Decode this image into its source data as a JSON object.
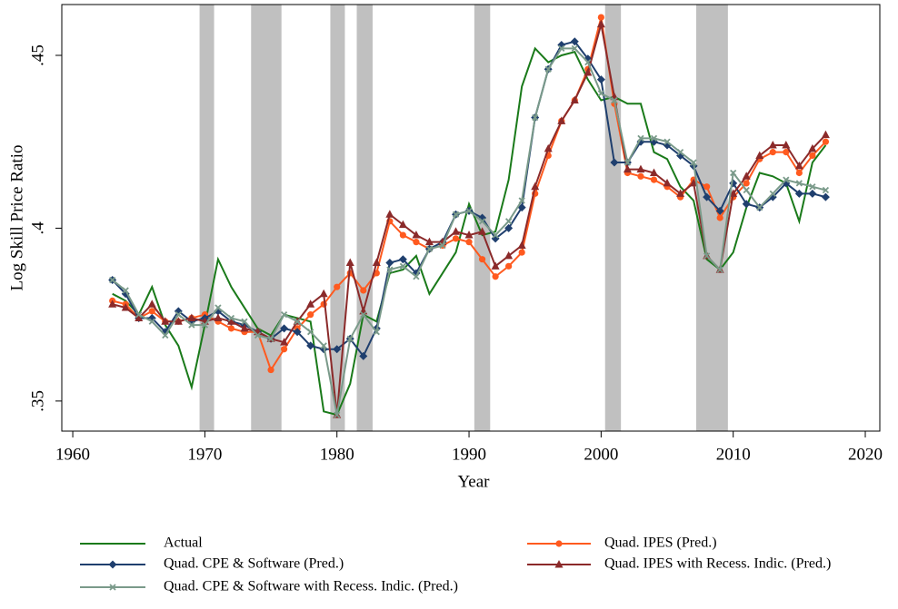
{
  "chart_data": {
    "type": "line",
    "x_label": "Year",
    "y_label": "Log Skill Price Ratio",
    "xlim": [
      1959.17,
      2021.1
    ],
    "ylim": [
      0.3413,
      0.4647
    ],
    "xticks": [
      1960,
      1970,
      1980,
      1990,
      2000,
      2010,
      2020
    ],
    "yticks": [
      {
        "value": 0.35,
        "label": ".35"
      },
      {
        "value": 0.4,
        "label": ".4"
      },
      {
        "value": 0.45,
        "label": ".45"
      }
    ],
    "grid": false,
    "legend": "bottom",
    "recessions": [
      [
        1969.6,
        1970.7
      ],
      [
        1973.5,
        1975.8
      ],
      [
        1979.5,
        1980.6
      ],
      [
        1981.5,
        1982.7
      ],
      [
        1990.4,
        1991.6
      ],
      [
        2000.3,
        2001.5
      ],
      [
        2007.2,
        2009.6
      ]
    ],
    "recession_color": "#c0c0c0",
    "x": [
      1963,
      1964,
      1965,
      1966,
      1967,
      1968,
      1969,
      1970,
      1971,
      1972,
      1973,
      1974,
      1975,
      1976,
      1977,
      1978,
      1979,
      1980,
      1981,
      1982,
      1983,
      1984,
      1985,
      1986,
      1987,
      1988,
      1989,
      1990,
      1991,
      1992,
      1993,
      1994,
      1995,
      1996,
      1997,
      1998,
      1999,
      2000,
      2001,
      2002,
      2003,
      2004,
      2005,
      2006,
      2007,
      2008,
      2009,
      2010,
      2011,
      2012,
      2013,
      2014,
      2015,
      2016,
      2017
    ],
    "series": [
      {
        "name": "Actual",
        "color": "#1a7a1a",
        "marker": "none",
        "values": [
          0.381,
          0.379,
          0.375,
          0.383,
          0.372,
          0.366,
          0.354,
          0.372,
          0.391,
          0.383,
          0.377,
          0.371,
          0.369,
          0.375,
          0.374,
          0.373,
          0.347,
          0.346,
          0.355,
          0.375,
          0.373,
          0.387,
          0.388,
          0.392,
          0.381,
          0.387,
          0.393,
          0.407,
          0.398,
          0.399,
          0.414,
          0.441,
          0.452,
          0.448,
          0.45,
          0.451,
          0.443,
          0.437,
          0.438,
          0.436,
          0.436,
          0.422,
          0.42,
          0.412,
          0.408,
          0.391,
          0.388,
          0.393,
          0.406,
          0.416,
          0.415,
          0.413,
          0.402,
          0.419,
          0.424
        ]
      },
      {
        "name": "Quad. IPES (Pred.)",
        "color": "#ff5a1f",
        "marker": "circle",
        "values": [
          0.379,
          0.378,
          0.374,
          0.376,
          0.373,
          0.373,
          0.374,
          0.375,
          0.373,
          0.371,
          0.37,
          0.37,
          0.359,
          0.365,
          0.371,
          0.375,
          0.378,
          0.383,
          0.387,
          0.382,
          0.387,
          0.402,
          0.398,
          0.396,
          0.394,
          0.395,
          0.397,
          0.396,
          0.391,
          0.386,
          0.389,
          0.393,
          0.41,
          0.421,
          0.431,
          0.437,
          0.446,
          0.461,
          0.436,
          0.416,
          0.415,
          0.414,
          0.412,
          0.409,
          0.414,
          0.412,
          0.403,
          0.409,
          0.413,
          0.42,
          0.422,
          0.422,
          0.416,
          0.421,
          0.425
        ]
      },
      {
        "name": "Quad. CPE & Software (Pred.)",
        "color": "#1f3f6e",
        "marker": "diamond",
        "values": [
          0.385,
          0.381,
          0.374,
          0.374,
          0.37,
          0.376,
          0.373,
          0.374,
          0.376,
          0.373,
          0.372,
          0.37,
          0.368,
          0.371,
          0.37,
          0.366,
          0.365,
          0.365,
          0.368,
          0.363,
          0.371,
          0.39,
          0.391,
          0.387,
          0.394,
          0.396,
          0.404,
          0.405,
          0.403,
          0.397,
          0.4,
          0.406,
          0.432,
          0.446,
          0.453,
          0.454,
          0.449,
          0.443,
          0.419,
          0.419,
          0.425,
          0.425,
          0.424,
          0.421,
          0.418,
          0.409,
          0.405,
          0.413,
          0.407,
          0.406,
          0.409,
          0.413,
          0.41,
          0.41,
          0.409
        ]
      },
      {
        "name": "Quad. IPES with Recess. Indic. (Pred.)",
        "color": "#8b2a2a",
        "marker": "triangle",
        "values": [
          0.378,
          0.377,
          0.374,
          0.378,
          0.373,
          0.373,
          0.374,
          0.373,
          0.374,
          0.373,
          0.371,
          0.37,
          0.368,
          0.367,
          0.373,
          0.378,
          0.381,
          0.346,
          0.39,
          0.376,
          0.39,
          0.404,
          0.401,
          0.398,
          0.396,
          0.396,
          0.399,
          0.398,
          0.399,
          0.389,
          0.392,
          0.395,
          0.412,
          0.423,
          0.431,
          0.437,
          0.445,
          0.459,
          0.438,
          0.417,
          0.417,
          0.416,
          0.413,
          0.41,
          0.413,
          0.392,
          0.388,
          0.41,
          0.415,
          0.421,
          0.424,
          0.424,
          0.418,
          0.423,
          0.427
        ]
      },
      {
        "name": "Quad. CPE & Software with Recess. Indic. (Pred.)",
        "color": "#7a9a8a",
        "marker": "x",
        "values": [
          0.385,
          0.382,
          0.375,
          0.373,
          0.369,
          0.375,
          0.372,
          0.372,
          0.377,
          0.374,
          0.373,
          0.369,
          0.368,
          0.375,
          0.373,
          0.37,
          0.366,
          0.346,
          0.368,
          0.375,
          0.37,
          0.388,
          0.389,
          0.386,
          0.394,
          0.395,
          0.404,
          0.405,
          0.402,
          0.398,
          0.402,
          0.408,
          0.432,
          0.446,
          0.452,
          0.452,
          0.448,
          0.439,
          0.437,
          0.419,
          0.426,
          0.426,
          0.425,
          0.422,
          0.419,
          0.392,
          0.388,
          0.416,
          0.411,
          0.406,
          0.41,
          0.414,
          0.413,
          0.412,
          0.411
        ]
      }
    ]
  }
}
